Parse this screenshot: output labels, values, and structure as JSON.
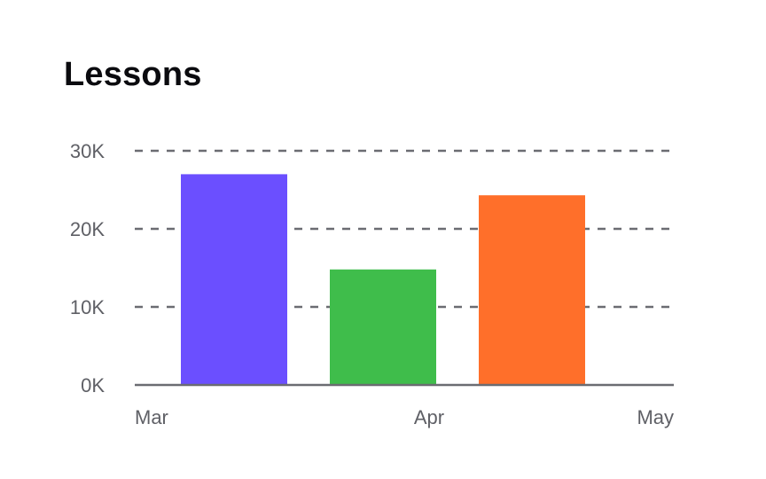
{
  "chart_data": {
    "type": "bar",
    "title": "Lessons",
    "xlabel": "",
    "ylabel": "",
    "categories": [
      "Mar",
      "Apr",
      "May"
    ],
    "x_tick_labels": [
      "Mar",
      "Apr",
      "May"
    ],
    "bars": [
      {
        "value": 27000,
        "color": "#6b4fff"
      },
      {
        "value": 14800,
        "color": "#3fbd4b"
      },
      {
        "value": 24300,
        "color": "#ff6f2a"
      }
    ],
    "ylim": [
      0,
      30000
    ],
    "y_ticks": [
      0,
      10000,
      20000,
      30000
    ],
    "y_tick_labels": [
      "0K",
      "10K",
      "20K",
      "30K"
    ],
    "grid": true,
    "grid_style": "dashed",
    "legend": "none"
  }
}
